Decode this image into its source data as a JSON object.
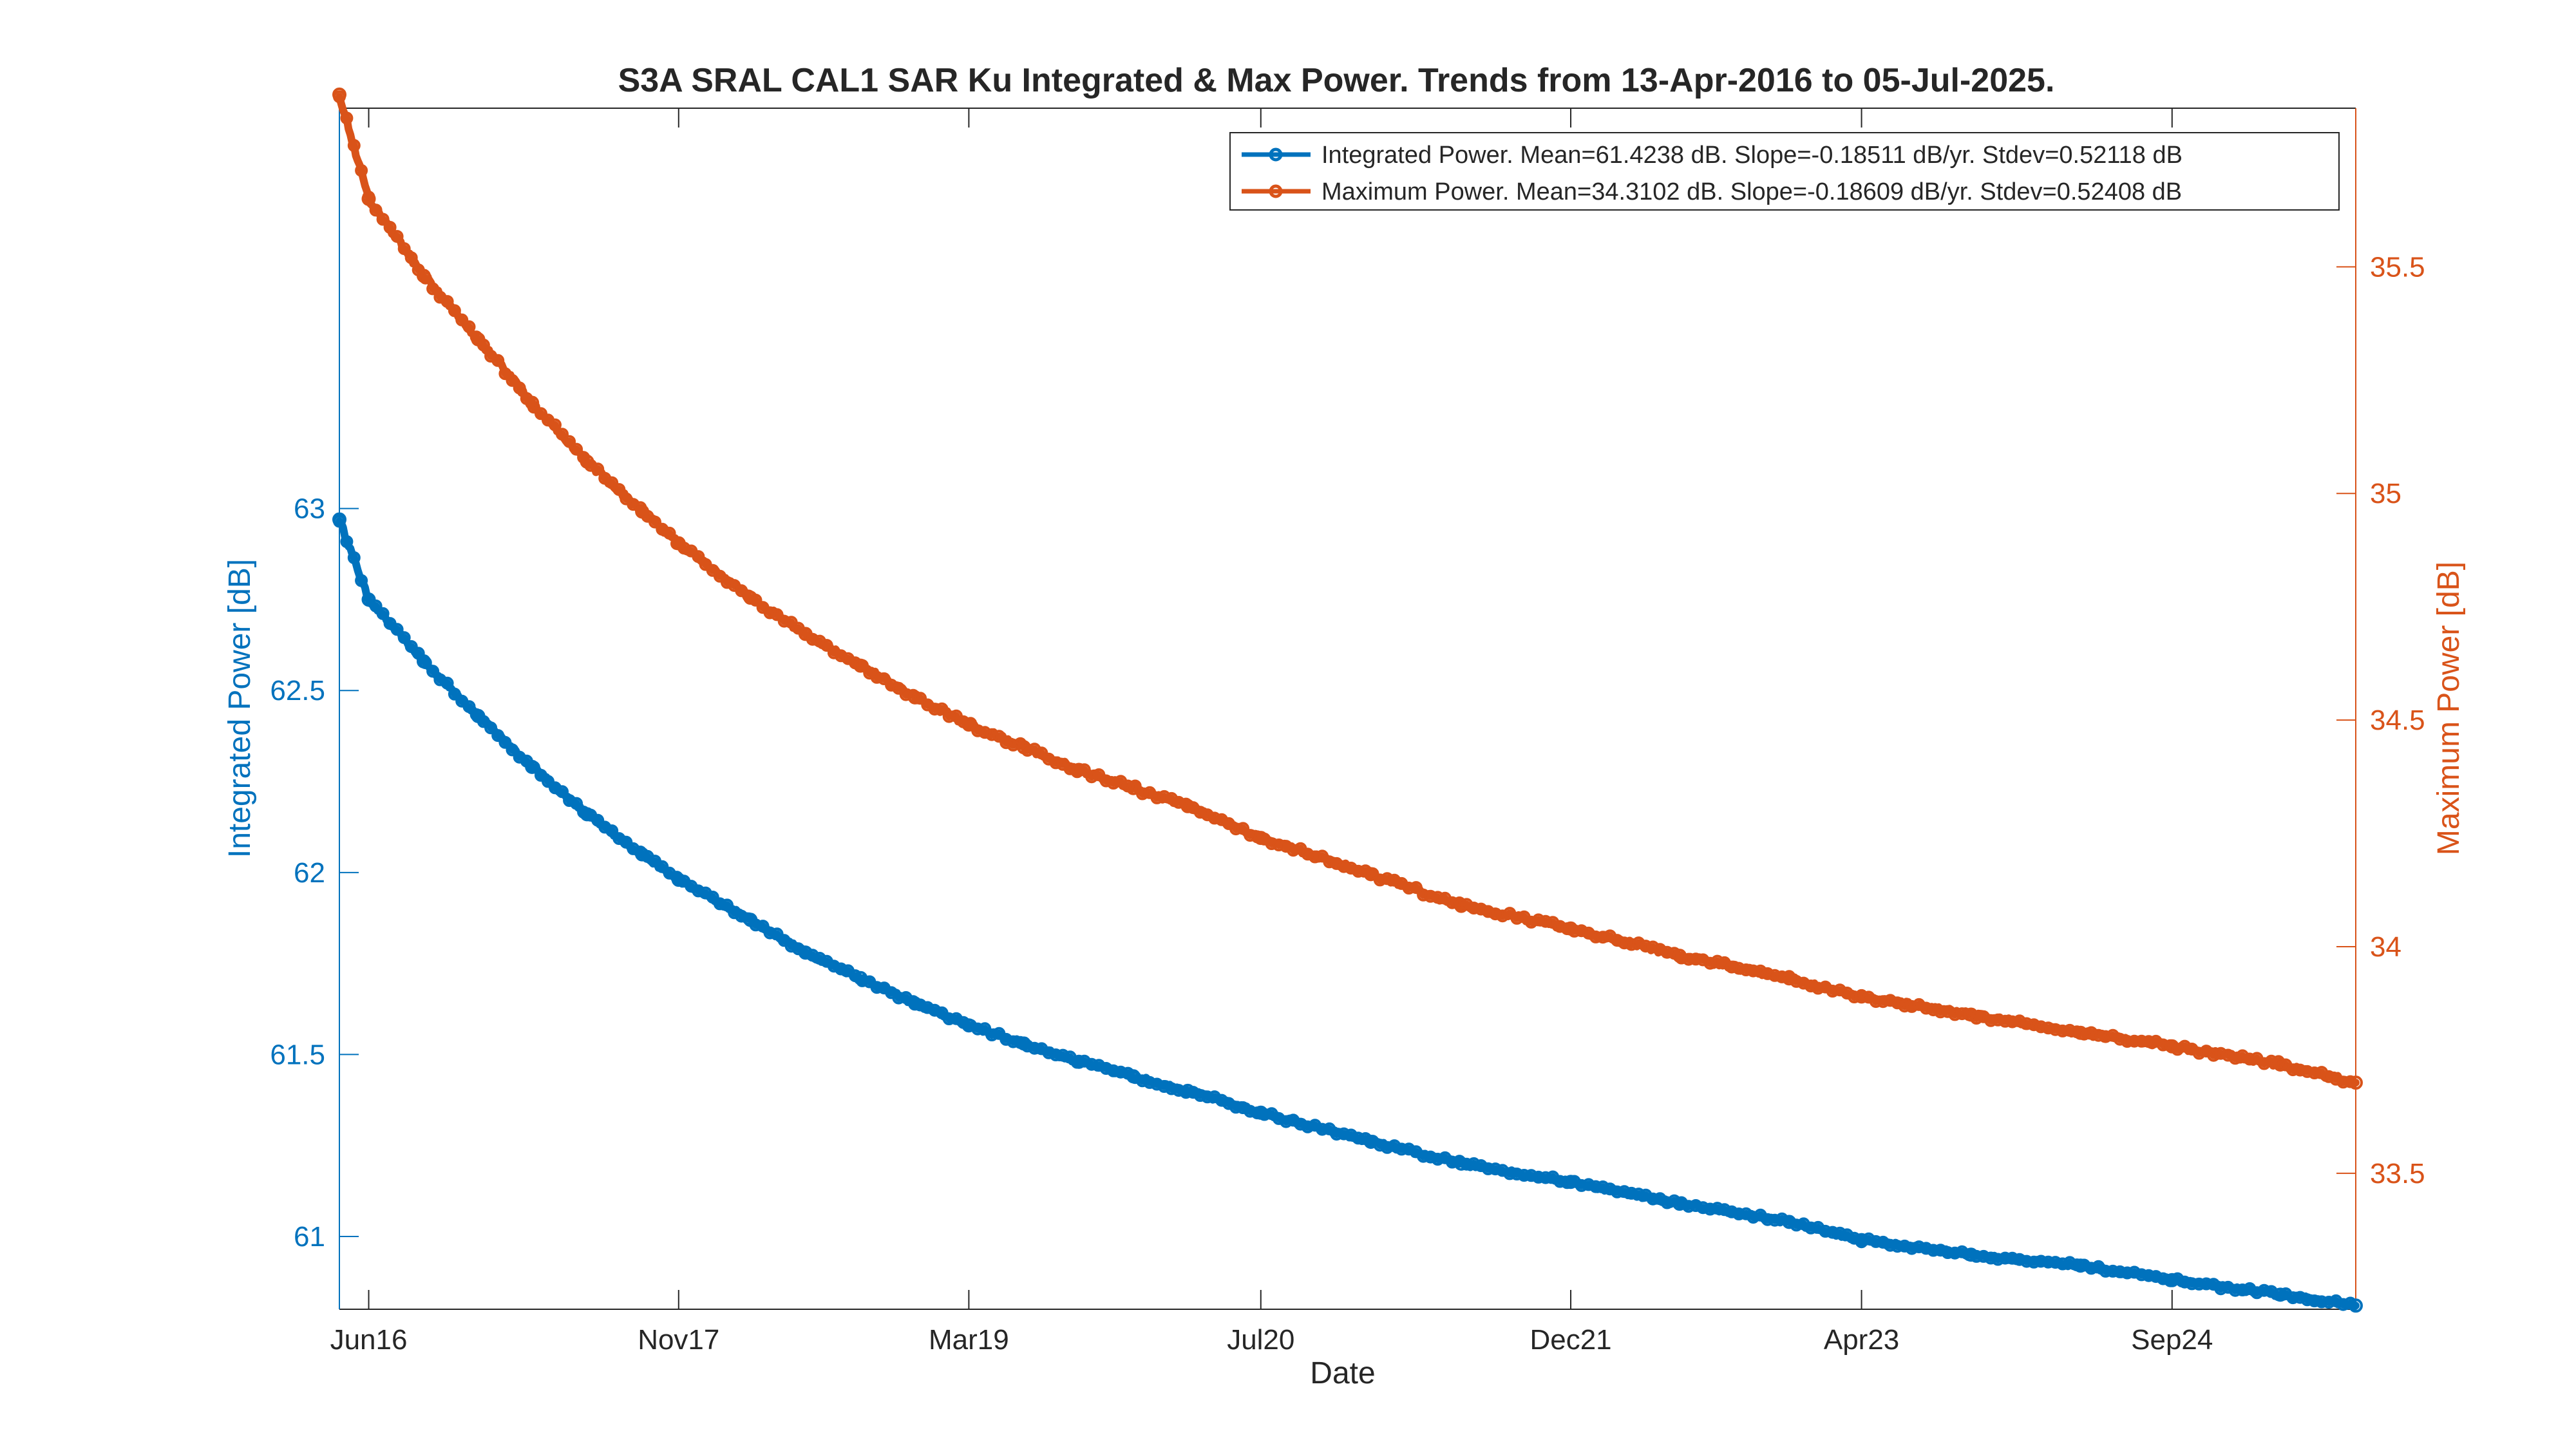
{
  "chart_data": {
    "type": "line",
    "title": "S3A SRAL CAL1 SAR Ku Integrated & Max Power. Trends from 13-Apr-2016 to 05-Jul-2025.",
    "xlabel": "Date",
    "ylabel_left": "Integrated Power [dB]",
    "ylabel_right": "Maximum Power [dB]",
    "x_range": [
      "2016-04-13",
      "2025-07-05"
    ],
    "x_ticks": [
      {
        "date": "2016-06-01",
        "label": "Jun16"
      },
      {
        "date": "2017-11-01",
        "label": "Nov17"
      },
      {
        "date": "2019-03-01",
        "label": "Mar19"
      },
      {
        "date": "2020-07-01",
        "label": "Jul20"
      },
      {
        "date": "2021-12-01",
        "label": "Dec21"
      },
      {
        "date": "2023-04-01",
        "label": "Apr23"
      },
      {
        "date": "2024-09-01",
        "label": "Sep24"
      }
    ],
    "ylim_left": [
      60.8,
      64.1
    ],
    "yticks_left": [
      61,
      61.5,
      62,
      62.5,
      63
    ],
    "ylim_right": [
      33.2,
      35.85
    ],
    "yticks_right": [
      33.5,
      34,
      34.5,
      35,
      35.5
    ],
    "legend_position": "top-right",
    "grid": false,
    "series": [
      {
        "name": "Integrated Power. Mean=61.4238 dB. Slope=-0.18511 dB/yr. Stdev=0.52118 dB",
        "axis": "left",
        "color": "#0072BD",
        "points": [
          [
            "2016-04-13",
            62.97
          ],
          [
            "2016-06-01",
            62.75
          ],
          [
            "2016-09-01",
            62.58
          ],
          [
            "2016-12-01",
            62.43
          ],
          [
            "2017-03-01",
            62.29
          ],
          [
            "2017-06-01",
            62.16
          ],
          [
            "2017-09-01",
            62.05
          ],
          [
            "2017-11-01",
            61.98
          ],
          [
            "2018-03-01",
            61.87
          ],
          [
            "2018-06-01",
            61.78
          ],
          [
            "2018-09-01",
            61.71
          ],
          [
            "2018-12-01",
            61.64
          ],
          [
            "2019-03-01",
            61.58
          ],
          [
            "2019-06-01",
            61.53
          ],
          [
            "2019-09-01",
            61.48
          ],
          [
            "2019-12-01",
            61.44
          ],
          [
            "2020-03-01",
            61.4
          ],
          [
            "2020-07-01",
            61.34
          ],
          [
            "2021-01-01",
            61.26
          ],
          [
            "2021-06-01",
            61.2
          ],
          [
            "2021-12-01",
            61.15
          ],
          [
            "2022-06-01",
            61.09
          ],
          [
            "2022-12-01",
            61.04
          ],
          [
            "2023-04-01",
            60.99
          ],
          [
            "2023-10-01",
            60.95
          ],
          [
            "2024-04-01",
            60.92
          ],
          [
            "2024-09-01",
            60.88
          ],
          [
            "2025-03-01",
            60.84
          ],
          [
            "2025-07-05",
            60.81
          ]
        ]
      },
      {
        "name": "Maximum Power. Mean=34.3102 dB. Slope=-0.18609 dB/yr. Stdev=0.52408 dB",
        "axis": "right",
        "color": "#D95319",
        "points": [
          [
            "2016-04-13",
            35.88
          ],
          [
            "2016-06-01",
            35.65
          ],
          [
            "2016-09-01",
            35.48
          ],
          [
            "2016-12-01",
            35.34
          ],
          [
            "2017-03-01",
            35.2
          ],
          [
            "2017-06-01",
            35.07
          ],
          [
            "2017-09-01",
            34.96
          ],
          [
            "2017-11-01",
            34.89
          ],
          [
            "2018-03-01",
            34.77
          ],
          [
            "2018-06-01",
            34.69
          ],
          [
            "2018-09-01",
            34.62
          ],
          [
            "2018-12-01",
            34.55
          ],
          [
            "2019-03-01",
            34.49
          ],
          [
            "2019-06-01",
            34.44
          ],
          [
            "2019-09-01",
            34.39
          ],
          [
            "2019-12-01",
            34.35
          ],
          [
            "2020-03-01",
            34.31
          ],
          [
            "2020-07-01",
            34.24
          ],
          [
            "2021-01-01",
            34.16
          ],
          [
            "2021-06-01",
            34.09
          ],
          [
            "2021-12-01",
            34.04
          ],
          [
            "2022-06-01",
            33.98
          ],
          [
            "2022-12-01",
            33.93
          ],
          [
            "2023-04-01",
            33.89
          ],
          [
            "2023-10-01",
            33.85
          ],
          [
            "2024-04-01",
            33.81
          ],
          [
            "2024-09-01",
            33.78
          ],
          [
            "2025-03-01",
            33.74
          ],
          [
            "2025-07-05",
            33.7
          ]
        ]
      }
    ]
  }
}
